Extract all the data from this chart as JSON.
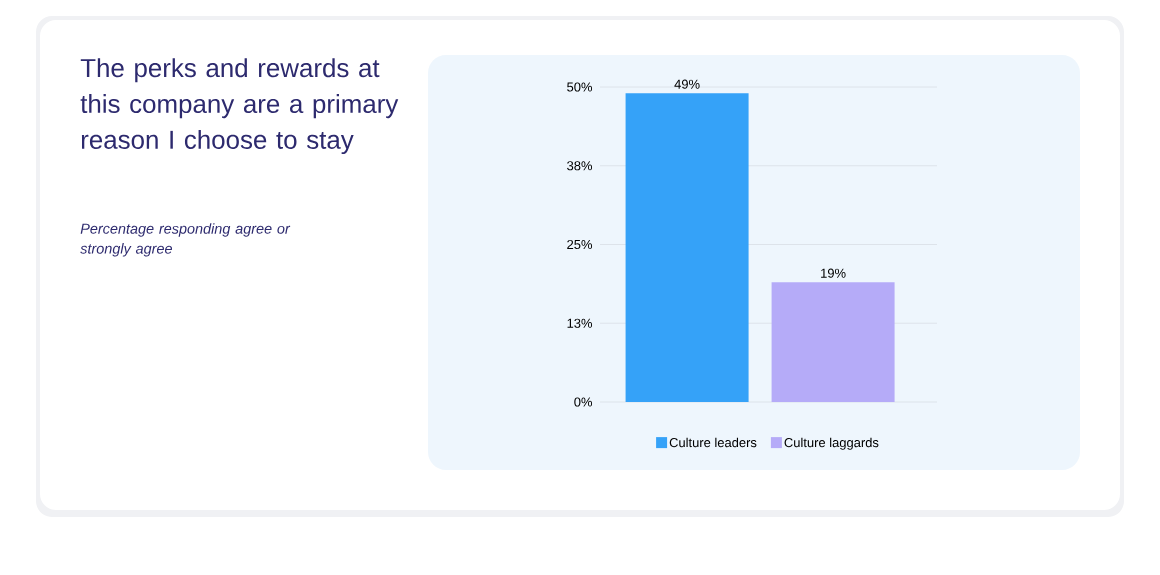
{
  "chart_data": {
    "type": "bar",
    "title": "The perks and rewards at this company are a primary reason I choose to stay",
    "subtitle": "Percentage responding agree or strongly agree",
    "categories": [
      null
    ],
    "series": [
      {
        "name": "Culture leaders",
        "color": "#35a2f8",
        "values": [
          49
        ],
        "value_labels": [
          "49%"
        ]
      },
      {
        "name": "Culture laggards",
        "color": "#b5abf8",
        "values": [
          19
        ],
        "value_labels": [
          "19%"
        ]
      }
    ],
    "ylim": [
      0,
      50
    ],
    "yticks": [
      {
        "value": 0,
        "label": "0%"
      },
      {
        "value": 12.5,
        "label": "13%"
      },
      {
        "value": 25,
        "label": "25%"
      },
      {
        "value": 37.5,
        "label": "38%"
      },
      {
        "value": 50,
        "label": "50%"
      }
    ],
    "grid": "y",
    "legend": "bottom"
  }
}
